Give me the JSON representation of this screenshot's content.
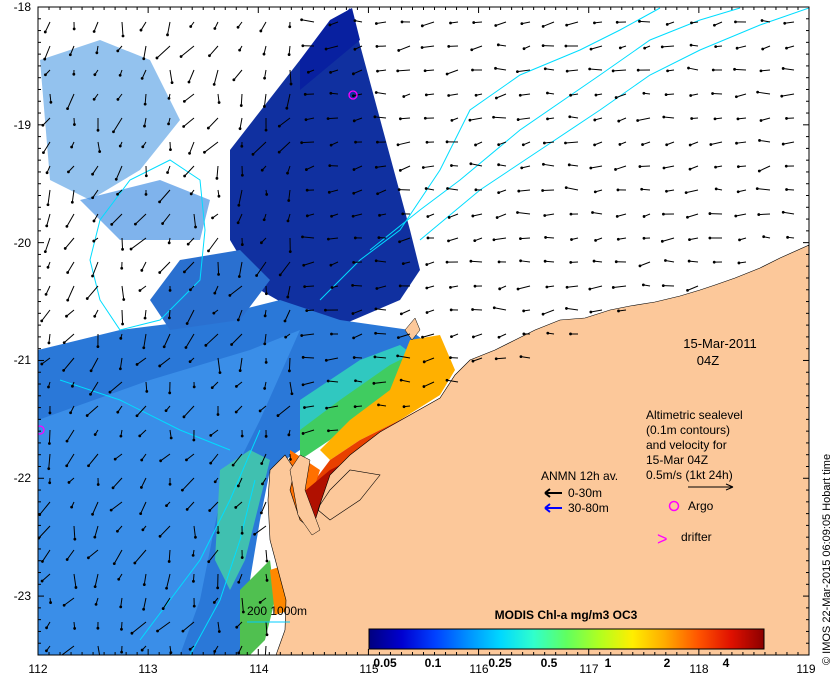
{
  "map": {
    "x_ticks": [
      "112",
      "113",
      "114",
      "115",
      "116",
      "117",
      "118",
      "119"
    ],
    "y_ticks": [
      "-18",
      "-19",
      "-20",
      "-21",
      "-22",
      "-23"
    ]
  },
  "datetime": {
    "date": "15-Mar-2011",
    "time": "04Z"
  },
  "altimetry_note": [
    "Altimetric sealevel",
    "(0.1m contours)",
    "and velocity for",
    "15-Mar 04Z",
    "0.5m/s (1kt 24h)"
  ],
  "legend": {
    "anmn_title": "ANMN 12h av.",
    "anmn_items": [
      {
        "label": "0-30m",
        "color": "#000000"
      },
      {
        "label": "30-80m",
        "color": "#0000ff"
      }
    ],
    "argo": {
      "label": "Argo",
      "color": "#ff00ff"
    },
    "drifter": {
      "label": "drifter",
      "symbol": ">",
      "color": "#ff00ff"
    }
  },
  "colorbar": {
    "title": "MODIS Chl-a mg/m3 OC3",
    "ticks": [
      "0.05",
      "0.1",
      "0.25",
      "0.5",
      "1",
      "2",
      "4"
    ],
    "colors": [
      "#00007f",
      "#0000d0",
      "#0040ff",
      "#0090ff",
      "#00d8ff",
      "#30ffcc",
      "#60ff60",
      "#b0ff20",
      "#ffee00",
      "#ffaa00",
      "#ff5500",
      "#e01000",
      "#8b0000"
    ]
  },
  "depth_legend": {
    "label": "200 1000m",
    "color": "#00ccff"
  },
  "copyright": "© IMOS 22-Mar-2015 06:09:05 Hobart time",
  "colors": {
    "land": "#fcc89a",
    "ocean_bg": "#ffffff",
    "contour": "#00ddff"
  }
}
